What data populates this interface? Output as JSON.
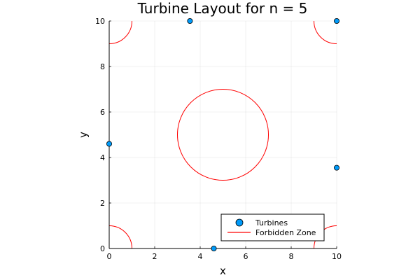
{
  "chart_data": {
    "type": "scatter",
    "title": "Turbine Layout for n = 5",
    "xlabel": "x",
    "ylabel": "y",
    "xlim": [
      0,
      10
    ],
    "ylim": [
      0,
      10
    ],
    "x_ticks": [
      0,
      2,
      4,
      6,
      8,
      10
    ],
    "y_ticks": [
      0,
      2,
      4,
      6,
      8,
      10
    ],
    "grid": true,
    "legend_position": "bottom-right",
    "aspect": "equal",
    "series": [
      {
        "name": "Turbines",
        "type": "scatter",
        "color": "#009af9",
        "points": [
          {
            "x": 3.55,
            "y": 10.0
          },
          {
            "x": 10.0,
            "y": 10.0
          },
          {
            "x": 0.0,
            "y": 4.6
          },
          {
            "x": 10.0,
            "y": 3.55
          },
          {
            "x": 4.6,
            "y": 0.0
          }
        ]
      },
      {
        "name": "Forbidden Zone",
        "type": "line",
        "color": "#ff0000",
        "circles": [
          {
            "cx": 5,
            "cy": 5,
            "r": 2
          },
          {
            "cx": 0,
            "cy": 0,
            "r": 1
          },
          {
            "cx": 0,
            "cy": 10,
            "r": 1
          },
          {
            "cx": 10,
            "cy": 0,
            "r": 1
          },
          {
            "cx": 10,
            "cy": 10,
            "r": 1
          }
        ]
      }
    ]
  }
}
